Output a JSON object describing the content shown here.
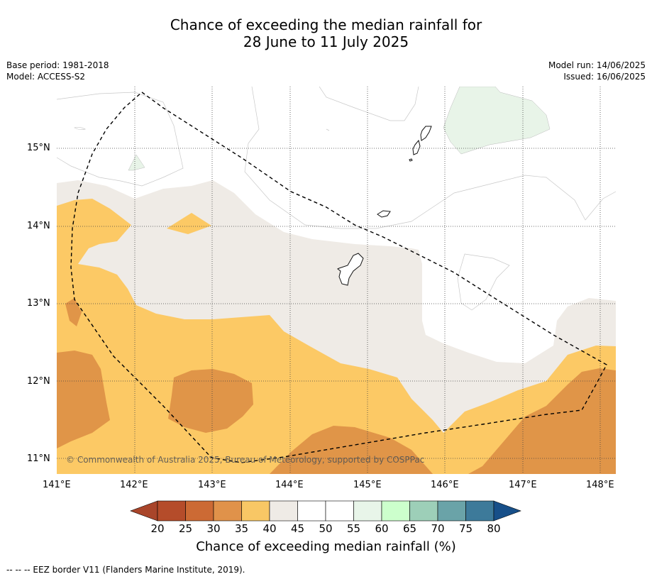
{
  "title": {
    "line1": "Chance of exceeding the median rainfall for",
    "line2": "28 June to 11 July 2025"
  },
  "meta": {
    "base_period": "Base period: 1981-2018",
    "model": "Model: ACCESS-S2",
    "model_run": "Model run: 14/06/2025",
    "issued": "Issued: 16/06/2025"
  },
  "axes": {
    "lon_ticks": [
      "141°E",
      "142°E",
      "143°E",
      "144°E",
      "145°E",
      "146°E",
      "147°E",
      "148°E"
    ],
    "lat_ticks": [
      "15°N",
      "14°N",
      "13°N",
      "12°N",
      "11°N"
    ]
  },
  "colorbar": {
    "labels": [
      "20",
      "25",
      "30",
      "35",
      "40",
      "45",
      "50",
      "55",
      "60",
      "65",
      "70",
      "75",
      "80"
    ],
    "colors": [
      "#a9452a",
      "#b54c2a",
      "#cc6a34",
      "#e0924a",
      "#f8c765",
      "#efebe6",
      "#ffffff",
      "#ffffff",
      "#e8f5e9",
      "#ccffcc",
      "#9dcfb8",
      "#6aa3a8",
      "#3d7a9a",
      "#174f89"
    ],
    "title": "Chance of exceeding median rainfall (%)"
  },
  "copyright": "© Commonwealth of Australia 2025, Bureau of Meteorology, supported by COSPPac",
  "footnote": "--  --  -- EEZ border V11 (Flanders Marine Institute, 2019)."
}
